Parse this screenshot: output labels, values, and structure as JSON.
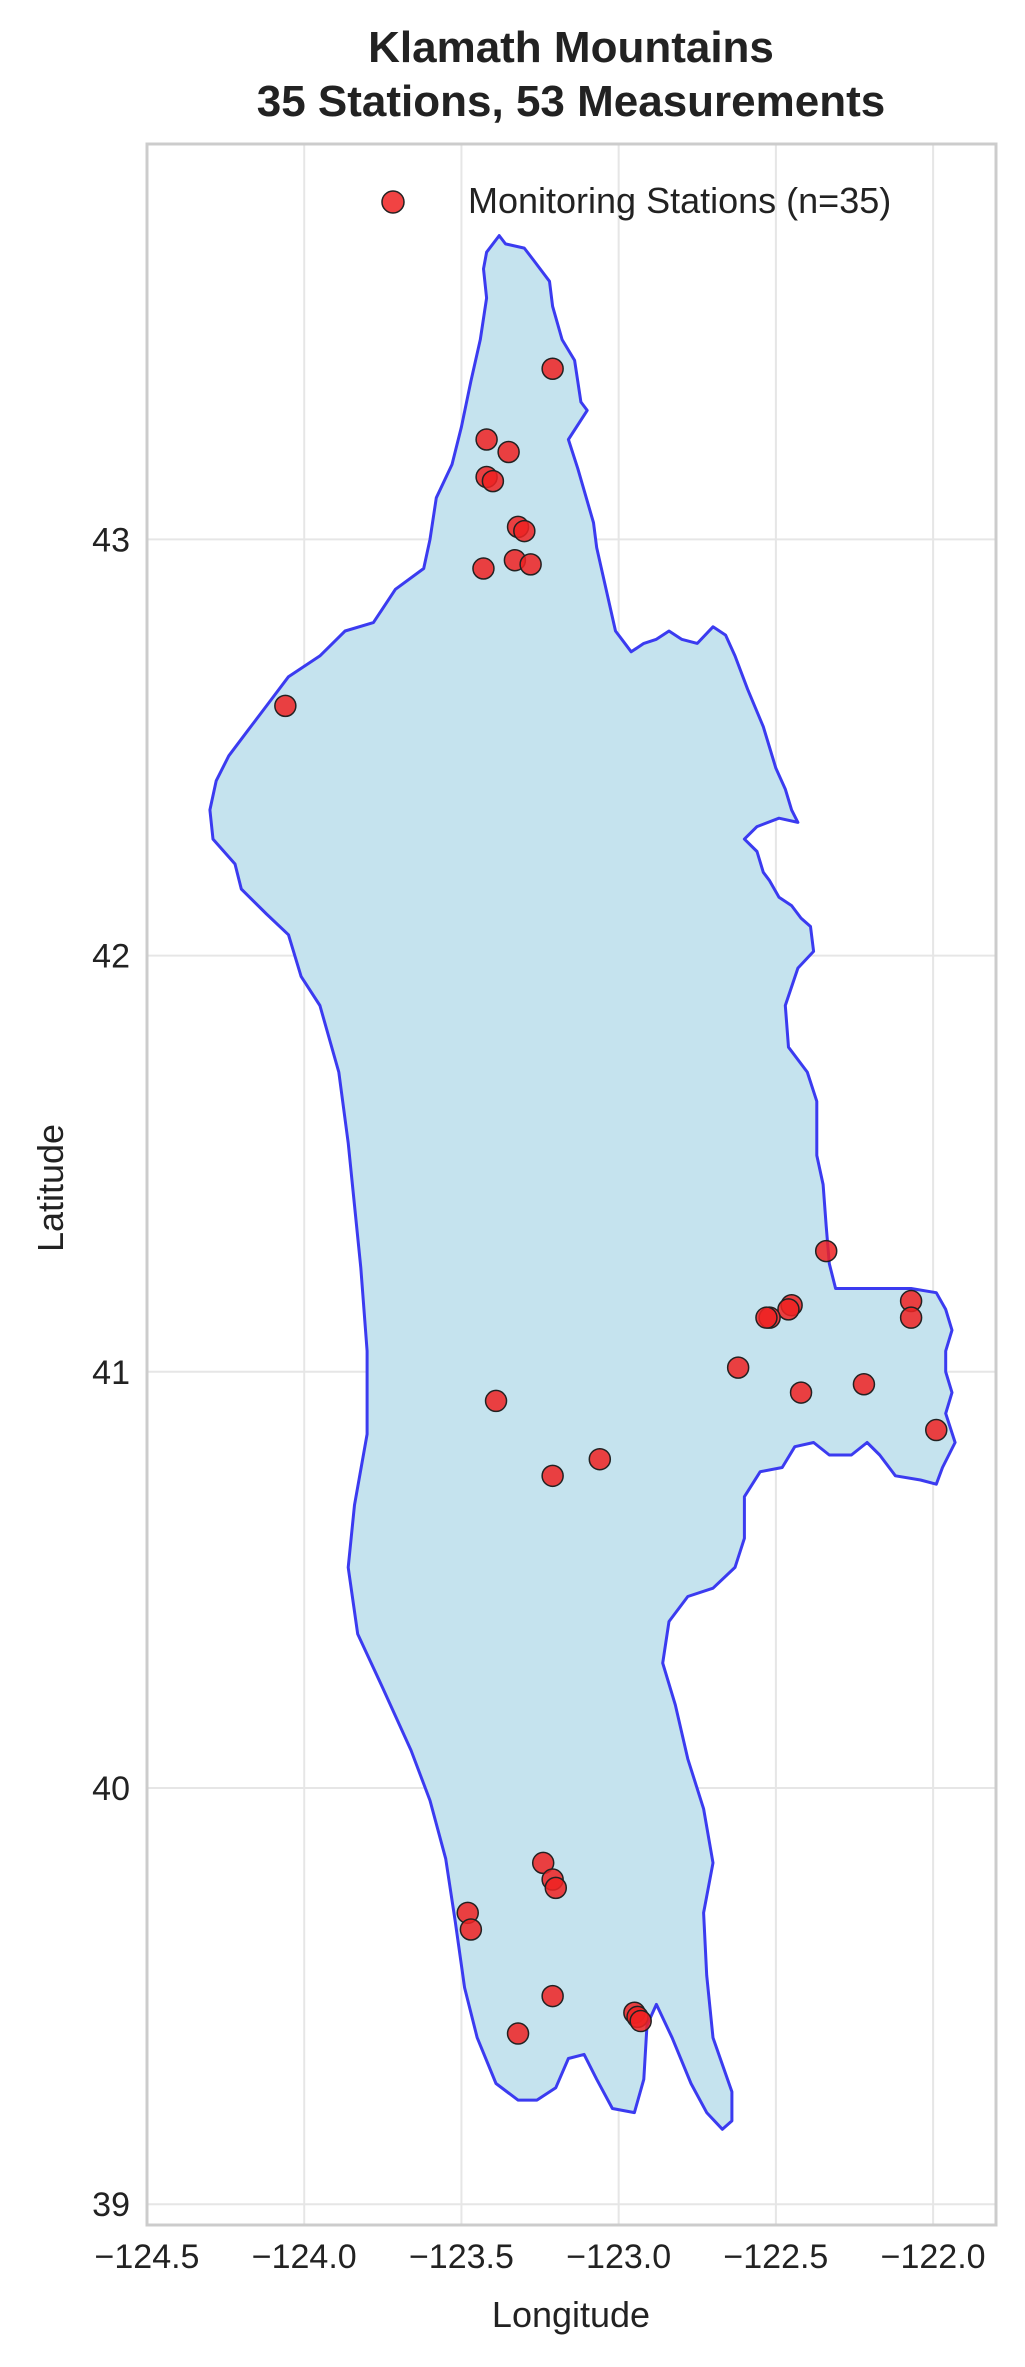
{
  "chart_data": {
    "type": "scatter",
    "title": [
      "Klamath Mountains",
      "35 Stations, 53 Measurements"
    ],
    "xlabel": "Longitude",
    "ylabel": "Latitude",
    "xlim": [
      -124.5,
      -121.8
    ],
    "ylim": [
      38.95,
      43.95
    ],
    "xticks": [
      -124.5,
      -124.0,
      -123.5,
      -123.0,
      -122.5,
      -122.0
    ],
    "xtick_labels": [
      "−124.5",
      "−124.0",
      "−123.5",
      "−123.0",
      "−122.5",
      "−122.0"
    ],
    "yticks": [
      39,
      40,
      41,
      42,
      43
    ],
    "ytick_labels": [
      "39",
      "40",
      "41",
      "42",
      "43"
    ],
    "grid": true,
    "legend": {
      "placement": "top-right",
      "entries": [
        "Monitoring Stations (n=35)"
      ]
    },
    "colors": {
      "region_fill": "#c5e3ee",
      "region_outline": "#3b3bf0",
      "points": "#ee2222",
      "point_edge": "#222222",
      "grid": "#e6e6e6",
      "spine": "#cccccc"
    },
    "region_outline": [
      [
        -123.42,
        43.69
      ],
      [
        -123.38,
        43.73
      ],
      [
        -123.36,
        43.71
      ],
      [
        -123.3,
        43.7
      ],
      [
        -123.27,
        43.67
      ],
      [
        -123.22,
        43.62
      ],
      [
        -123.21,
        43.56
      ],
      [
        -123.18,
        43.48
      ],
      [
        -123.14,
        43.43
      ],
      [
        -123.12,
        43.33
      ],
      [
        -123.1,
        43.31
      ],
      [
        -123.16,
        43.24
      ],
      [
        -123.13,
        43.17
      ],
      [
        -123.08,
        43.04
      ],
      [
        -123.07,
        42.98
      ],
      [
        -123.04,
        42.88
      ],
      [
        -123.01,
        42.78
      ],
      [
        -122.99,
        42.76
      ],
      [
        -122.96,
        42.73
      ],
      [
        -122.92,
        42.75
      ],
      [
        -122.88,
        42.76
      ],
      [
        -122.84,
        42.78
      ],
      [
        -122.8,
        42.76
      ],
      [
        -122.75,
        42.75
      ],
      [
        -122.7,
        42.79
      ],
      [
        -122.66,
        42.77
      ],
      [
        -122.63,
        42.72
      ],
      [
        -122.59,
        42.64
      ],
      [
        -122.54,
        42.55
      ],
      [
        -122.5,
        42.45
      ],
      [
        -122.47,
        42.4
      ],
      [
        -122.45,
        42.35
      ],
      [
        -122.43,
        42.32
      ],
      [
        -122.49,
        42.33
      ],
      [
        -122.56,
        42.31
      ],
      [
        -122.6,
        42.28
      ],
      [
        -122.56,
        42.25
      ],
      [
        -122.54,
        42.2
      ],
      [
        -122.52,
        42.18
      ],
      [
        -122.49,
        42.14
      ],
      [
        -122.45,
        42.12
      ],
      [
        -122.42,
        42.09
      ],
      [
        -122.39,
        42.07
      ],
      [
        -122.38,
        42.01
      ],
      [
        -122.43,
        41.97
      ],
      [
        -122.47,
        41.88
      ],
      [
        -122.46,
        41.78
      ],
      [
        -122.4,
        41.72
      ],
      [
        -122.37,
        41.65
      ],
      [
        -122.37,
        41.52
      ],
      [
        -122.35,
        41.45
      ],
      [
        -122.34,
        41.35
      ],
      [
        -122.33,
        41.26
      ],
      [
        -122.31,
        41.2
      ],
      [
        -122.17,
        41.2
      ],
      [
        -122.07,
        41.2
      ],
      [
        -121.99,
        41.19
      ],
      [
        -121.96,
        41.15
      ],
      [
        -121.94,
        41.1
      ],
      [
        -121.96,
        41.05
      ],
      [
        -121.96,
        41.0
      ],
      [
        -121.94,
        40.95
      ],
      [
        -121.96,
        40.9
      ],
      [
        -121.93,
        40.83
      ],
      [
        -121.97,
        40.77
      ],
      [
        -121.99,
        40.73
      ],
      [
        -122.04,
        40.74
      ],
      [
        -122.12,
        40.75
      ],
      [
        -122.17,
        40.8
      ],
      [
        -122.21,
        40.83
      ],
      [
        -122.26,
        40.8
      ],
      [
        -122.33,
        40.8
      ],
      [
        -122.38,
        40.83
      ],
      [
        -122.44,
        40.82
      ],
      [
        -122.48,
        40.77
      ],
      [
        -122.55,
        40.76
      ],
      [
        -122.6,
        40.7
      ],
      [
        -122.6,
        40.6
      ],
      [
        -122.63,
        40.53
      ],
      [
        -122.7,
        40.48
      ],
      [
        -122.78,
        40.46
      ],
      [
        -122.84,
        40.4
      ],
      [
        -122.86,
        40.3
      ],
      [
        -122.82,
        40.2
      ],
      [
        -122.78,
        40.07
      ],
      [
        -122.73,
        39.95
      ],
      [
        -122.7,
        39.82
      ],
      [
        -122.73,
        39.7
      ],
      [
        -122.72,
        39.55
      ],
      [
        -122.7,
        39.4
      ],
      [
        -122.64,
        39.27
      ],
      [
        -122.64,
        39.2
      ],
      [
        -122.67,
        39.18
      ],
      [
        -122.72,
        39.22
      ],
      [
        -122.77,
        39.29
      ],
      [
        -122.83,
        39.4
      ],
      [
        -122.88,
        39.48
      ],
      [
        -122.91,
        39.43
      ],
      [
        -122.92,
        39.3
      ],
      [
        -122.95,
        39.22
      ],
      [
        -123.02,
        39.23
      ],
      [
        -123.07,
        39.3
      ],
      [
        -123.11,
        39.36
      ],
      [
        -123.16,
        39.35
      ],
      [
        -123.2,
        39.28
      ],
      [
        -123.26,
        39.25
      ],
      [
        -123.32,
        39.25
      ],
      [
        -123.39,
        39.29
      ],
      [
        -123.45,
        39.4
      ],
      [
        -123.49,
        39.52
      ],
      [
        -123.52,
        39.68
      ],
      [
        -123.55,
        39.83
      ],
      [
        -123.6,
        39.97
      ],
      [
        -123.66,
        40.09
      ],
      [
        -123.75,
        40.24
      ],
      [
        -123.83,
        40.37
      ],
      [
        -123.86,
        40.53
      ],
      [
        -123.84,
        40.68
      ],
      [
        -123.8,
        40.85
      ],
      [
        -123.8,
        41.05
      ],
      [
        -123.82,
        41.25
      ],
      [
        -123.84,
        41.4
      ],
      [
        -123.86,
        41.55
      ],
      [
        -123.89,
        41.72
      ],
      [
        -123.95,
        41.88
      ],
      [
        -124.01,
        41.95
      ],
      [
        -124.05,
        42.05
      ],
      [
        -124.12,
        42.1
      ],
      [
        -124.2,
        42.16
      ],
      [
        -124.22,
        42.22
      ],
      [
        -124.29,
        42.28
      ],
      [
        -124.3,
        42.35
      ],
      [
        -124.28,
        42.42
      ],
      [
        -124.24,
        42.48
      ],
      [
        -124.18,
        42.54
      ],
      [
        -124.12,
        42.6
      ],
      [
        -124.05,
        42.67
      ],
      [
        -123.95,
        42.72
      ],
      [
        -123.87,
        42.78
      ],
      [
        -123.78,
        42.8
      ],
      [
        -123.71,
        42.88
      ],
      [
        -123.62,
        42.93
      ],
      [
        -123.6,
        43.0
      ],
      [
        -123.58,
        43.1
      ],
      [
        -123.53,
        43.18
      ],
      [
        -123.5,
        43.27
      ],
      [
        -123.47,
        43.38
      ],
      [
        -123.44,
        43.48
      ],
      [
        -123.42,
        43.58
      ],
      [
        -123.43,
        43.65
      ],
      [
        -123.42,
        43.69
      ]
    ],
    "points": [
      {
        "x": -123.21,
        "y": 43.41
      },
      {
        "x": -123.42,
        "y": 43.24
      },
      {
        "x": -123.35,
        "y": 43.21
      },
      {
        "x": -123.42,
        "y": 43.15
      },
      {
        "x": -123.4,
        "y": 43.14
      },
      {
        "x": -123.32,
        "y": 43.03
      },
      {
        "x": -123.3,
        "y": 43.02
      },
      {
        "x": -123.33,
        "y": 42.95
      },
      {
        "x": -123.28,
        "y": 42.94
      },
      {
        "x": -123.43,
        "y": 42.93
      },
      {
        "x": -124.06,
        "y": 42.6
      },
      {
        "x": -122.34,
        "y": 41.29
      },
      {
        "x": -122.07,
        "y": 41.17
      },
      {
        "x": -122.07,
        "y": 41.13
      },
      {
        "x": -122.45,
        "y": 41.16
      },
      {
        "x": -122.46,
        "y": 41.15
      },
      {
        "x": -122.52,
        "y": 41.13
      },
      {
        "x": -122.53,
        "y": 41.13
      },
      {
        "x": -122.62,
        "y": 41.01
      },
      {
        "x": -122.22,
        "y": 40.97
      },
      {
        "x": -122.42,
        "y": 40.95
      },
      {
        "x": -121.99,
        "y": 40.86
      },
      {
        "x": -123.39,
        "y": 40.93
      },
      {
        "x": -123.06,
        "y": 40.79
      },
      {
        "x": -123.21,
        "y": 40.75
      },
      {
        "x": -123.24,
        "y": 39.82
      },
      {
        "x": -123.21,
        "y": 39.78
      },
      {
        "x": -123.2,
        "y": 39.76
      },
      {
        "x": -123.48,
        "y": 39.7
      },
      {
        "x": -123.47,
        "y": 39.66
      },
      {
        "x": -123.21,
        "y": 39.5
      },
      {
        "x": -123.32,
        "y": 39.41
      },
      {
        "x": -122.95,
        "y": 39.46
      },
      {
        "x": -122.94,
        "y": 39.45
      },
      {
        "x": -122.93,
        "y": 39.44
      }
    ]
  }
}
